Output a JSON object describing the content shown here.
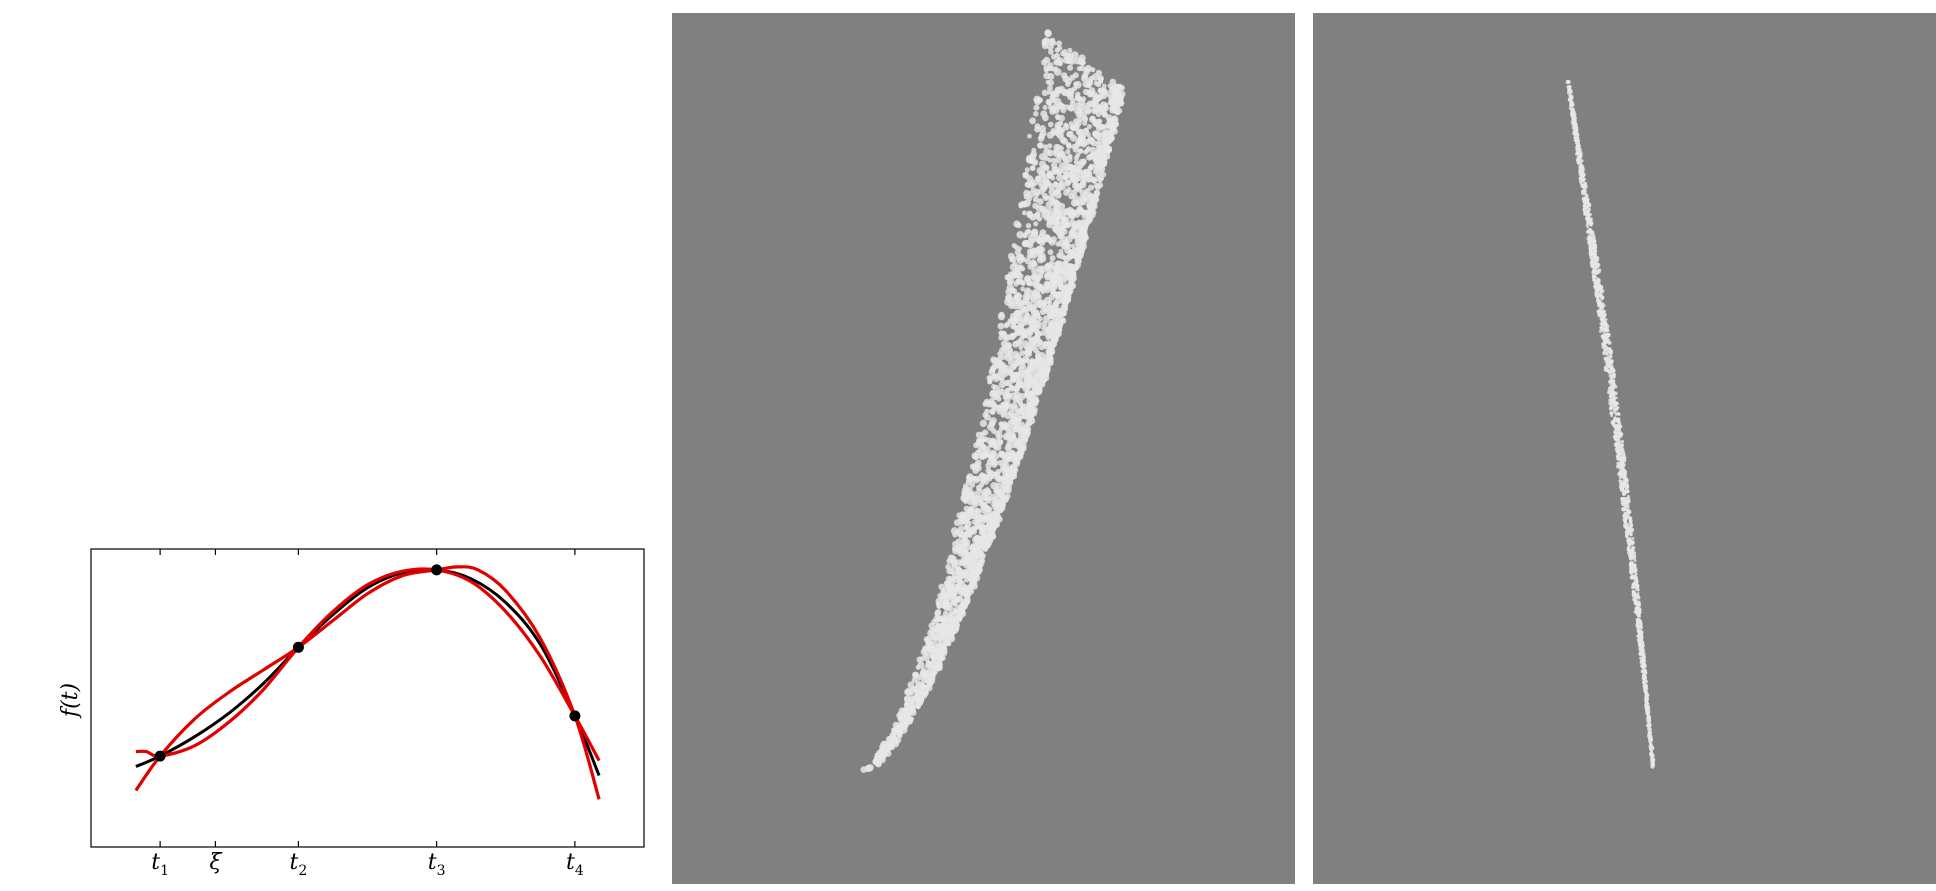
{
  "chart_data": [
    {
      "type": "line",
      "title": "",
      "xlabel": "",
      "ylabel": "f(t)",
      "grid": false,
      "legend": "none",
      "xlim": [
        0,
        8
      ],
      "ylim": [
        0,
        1
      ],
      "x_ticks": [
        {
          "label": "t",
          "sub": "1",
          "value": 1.0
        },
        {
          "label": "ξ",
          "sub": "",
          "value": 1.8
        },
        {
          "label": "t",
          "sub": "2",
          "value": 3.0
        },
        {
          "label": "t",
          "sub": "3",
          "value": 5.0
        },
        {
          "label": "t",
          "sub": "4",
          "value": 7.0
        }
      ],
      "series": [
        {
          "color": "#000000",
          "x": [
            0.65,
            1.0,
            1.5,
            2.0,
            2.5,
            3.0,
            3.5,
            4.0,
            4.5,
            5.0,
            5.5,
            6.0,
            6.5,
            7.0,
            7.35
          ],
          "y": [
            0.27,
            0.305,
            0.37,
            0.45,
            0.55,
            0.67,
            0.78,
            0.87,
            0.92,
            0.93,
            0.9,
            0.82,
            0.68,
            0.44,
            0.24
          ]
        },
        {
          "color": "#e00000",
          "x": [
            0.65,
            0.8,
            1.0,
            1.5,
            2.0,
            2.5,
            3.0,
            3.5,
            4.0,
            4.5,
            5.0,
            5.5,
            6.0,
            6.5,
            7.0,
            7.35
          ],
          "y": [
            0.32,
            0.32,
            0.305,
            0.34,
            0.42,
            0.53,
            0.67,
            0.79,
            0.88,
            0.925,
            0.93,
            0.89,
            0.79,
            0.64,
            0.44,
            0.29
          ]
        },
        {
          "color": "#e00000",
          "x": [
            0.65,
            1.0,
            1.5,
            2.0,
            2.5,
            3.0,
            3.5,
            4.0,
            4.5,
            5.0,
            5.3,
            5.6,
            6.0,
            6.5,
            7.0,
            7.35
          ],
          "y": [
            0.19,
            0.305,
            0.43,
            0.52,
            0.595,
            0.67,
            0.76,
            0.85,
            0.91,
            0.93,
            0.94,
            0.93,
            0.86,
            0.7,
            0.44,
            0.16
          ]
        }
      ],
      "points": {
        "color": "#000000",
        "x": [
          1.0,
          3.0,
          5.0,
          7.0
        ],
        "y": [
          0.305,
          0.67,
          0.93,
          0.44
        ]
      }
    },
    {
      "type": "scatter",
      "title": "",
      "background": "#808080",
      "point_color": "#e6e6e6",
      "description_shape": "curved crescent band of points rising from lower-left to upper-right"
    },
    {
      "type": "scatter",
      "title": "",
      "background": "#808080",
      "point_color": "#e6e6e6",
      "description_shape": "thin nearly straight band of points descending from top to bottom"
    }
  ]
}
